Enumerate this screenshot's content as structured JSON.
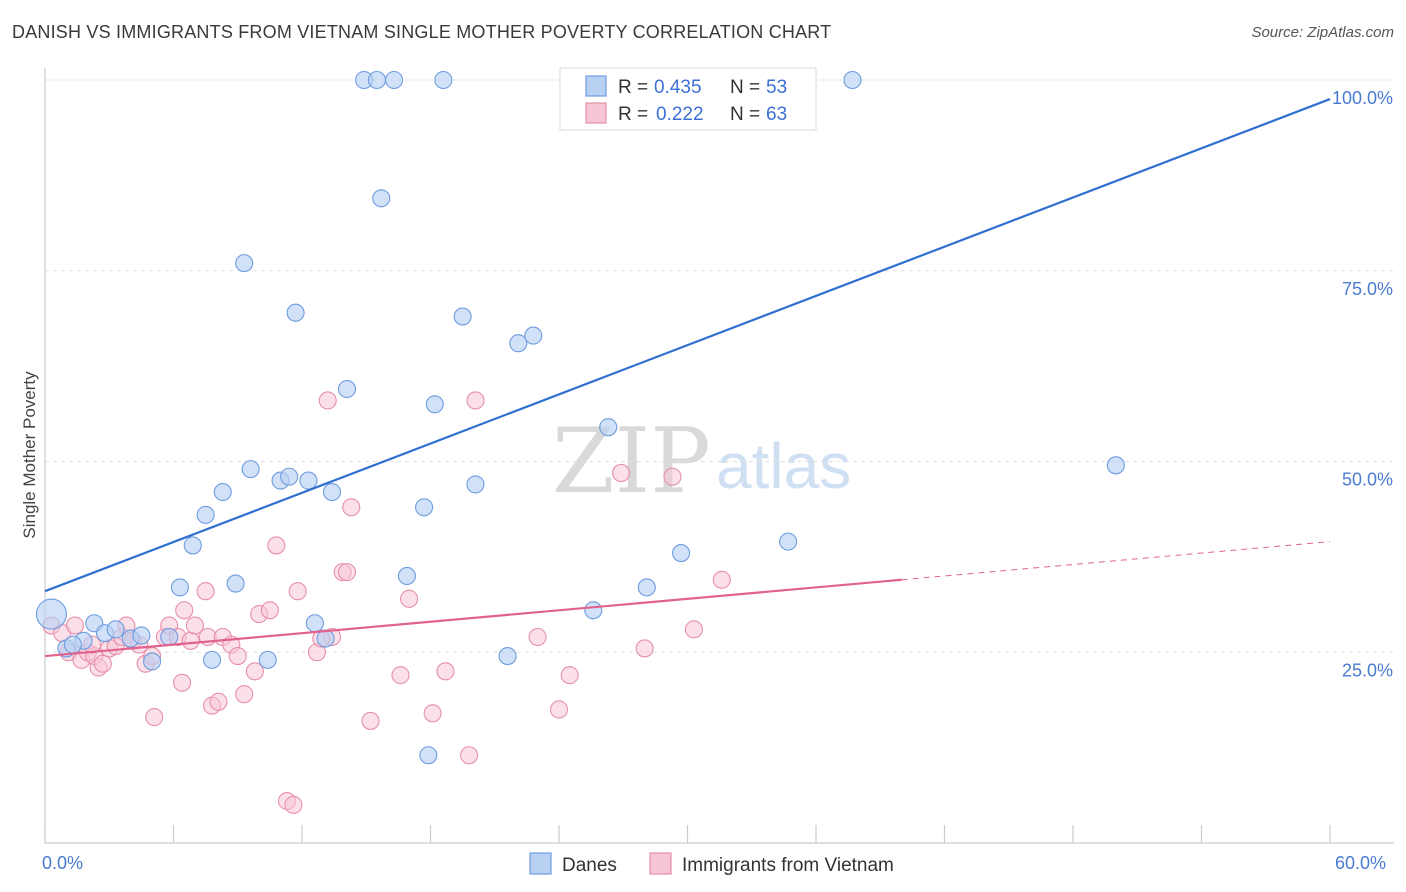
{
  "header": {
    "title": "DANISH VS IMMIGRANTS FROM VIETNAM SINGLE MOTHER POVERTY CORRELATION CHART",
    "source": "Source: ZipAtlas.com"
  },
  "watermark": {
    "zip": "ZIP",
    "atlas": "atlas"
  },
  "legend": {
    "danes": {
      "r_label": "R =",
      "r_value": "0.435",
      "n_label": "N =",
      "n_value": "53"
    },
    "vietnam": {
      "r_label": "R =",
      "r_value": "0.222",
      "n_label": "N =",
      "n_value": "63"
    }
  },
  "bottom_legend": {
    "danes": "Danes",
    "vietnam": "Immigrants from Vietnam"
  },
  "colors": {
    "danes_fill": "#b8d1f3",
    "danes_stroke": "#6d9ce0",
    "danes_line": "#2f6fd0",
    "vietnam_fill": "#f7c6d5",
    "vietnam_stroke": "#e78fab",
    "vietnam_line": "#e0628d"
  },
  "chart_data": {
    "type": "scatter",
    "title": "DANISH VS IMMIGRANTS FROM VIETNAM SINGLE MOTHER POVERTY CORRELATION CHART",
    "ylabel": "Single Mother Poverty",
    "xlabel": "",
    "xlim": [
      0,
      60
    ],
    "ylim": [
      0,
      100
    ],
    "x_tick_labels": [
      "0.0%",
      "60.0%"
    ],
    "y_tick_labels": [
      "25.0%",
      "50.0%",
      "75.0%",
      "100.0%"
    ],
    "y_ticks": [
      25,
      50,
      75,
      100
    ],
    "grid": true,
    "legend_placement": "top-center",
    "series": [
      {
        "name": "Danes",
        "r": 0.435,
        "n": 53,
        "trend": {
          "x": [
            0,
            60
          ],
          "y": [
            33.0,
            97.5
          ]
        },
        "points": [
          [
            0.3,
            30.0
          ],
          [
            1.0,
            25.5
          ],
          [
            1.8,
            26.5
          ],
          [
            2.3,
            28.8
          ],
          [
            2.8,
            27.5
          ],
          [
            3.3,
            28.0
          ],
          [
            4.0,
            26.8
          ],
          [
            4.5,
            27.2
          ],
          [
            5.0,
            23.8
          ],
          [
            5.8,
            27.0
          ],
          [
            6.3,
            33.5
          ],
          [
            6.9,
            39.0
          ],
          [
            7.5,
            43.0
          ],
          [
            7.8,
            24.0
          ],
          [
            8.3,
            46.0
          ],
          [
            8.9,
            34.0
          ],
          [
            9.3,
            76.0
          ],
          [
            9.6,
            49.0
          ],
          [
            10.4,
            24.0
          ],
          [
            11.0,
            47.5
          ],
          [
            11.4,
            48.0
          ],
          [
            11.7,
            69.5
          ],
          [
            12.3,
            47.5
          ],
          [
            12.6,
            28.8
          ],
          [
            13.1,
            26.8
          ],
          [
            13.4,
            46.0
          ],
          [
            14.1,
            59.5
          ],
          [
            14.9,
            100.0
          ],
          [
            15.5,
            100.0
          ],
          [
            15.7,
            84.5
          ],
          [
            16.3,
            100.0
          ],
          [
            16.9,
            35.0
          ],
          [
            17.7,
            44.0
          ],
          [
            17.9,
            11.5
          ],
          [
            18.2,
            57.5
          ],
          [
            18.6,
            100.0
          ],
          [
            19.5,
            69.0
          ],
          [
            20.1,
            47.0
          ],
          [
            21.6,
            24.5
          ],
          [
            22.1,
            65.5
          ],
          [
            22.8,
            66.5
          ],
          [
            24.9,
            100.0
          ],
          [
            25.6,
            30.5
          ],
          [
            26.3,
            54.5
          ],
          [
            27.3,
            100.0
          ],
          [
            28.1,
            33.5
          ],
          [
            29.7,
            38.0
          ],
          [
            31.1,
            100.0
          ],
          [
            34.7,
            39.5
          ],
          [
            37.7,
            100.0
          ],
          [
            50.0,
            49.5
          ],
          [
            25.1,
            100.0
          ],
          [
            1.3,
            26.0
          ]
        ]
      },
      {
        "name": "Immigrants from Vietnam",
        "r": 0.222,
        "n": 63,
        "trend": {
          "x": [
            0,
            40
          ],
          "y": [
            24.5,
            34.5
          ]
        },
        "trend_dashed": {
          "x": [
            40,
            60
          ],
          "y": [
            34.5,
            39.5
          ]
        },
        "points": [
          [
            0.3,
            28.5
          ],
          [
            0.8,
            27.5
          ],
          [
            1.1,
            25.0
          ],
          [
            1.4,
            28.5
          ],
          [
            1.7,
            24.0
          ],
          [
            2.0,
            25.0
          ],
          [
            2.3,
            24.5
          ],
          [
            2.5,
            23.0
          ],
          [
            2.7,
            23.5
          ],
          [
            3.0,
            25.5
          ],
          [
            3.3,
            25.8
          ],
          [
            3.6,
            27.0
          ],
          [
            3.8,
            28.5
          ],
          [
            4.1,
            26.5
          ],
          [
            4.4,
            26.0
          ],
          [
            4.7,
            23.5
          ],
          [
            5.0,
            24.5
          ],
          [
            5.1,
            16.5
          ],
          [
            5.6,
            27.0
          ],
          [
            5.8,
            28.5
          ],
          [
            6.2,
            27.0
          ],
          [
            6.4,
            21.0
          ],
          [
            6.5,
            30.5
          ],
          [
            6.8,
            26.5
          ],
          [
            7.0,
            28.5
          ],
          [
            7.5,
            33.0
          ],
          [
            7.6,
            27.0
          ],
          [
            7.8,
            18.0
          ],
          [
            8.1,
            18.5
          ],
          [
            8.3,
            27.0
          ],
          [
            8.7,
            26.0
          ],
          [
            9.0,
            24.5
          ],
          [
            9.3,
            19.5
          ],
          [
            9.8,
            22.5
          ],
          [
            10.0,
            30.0
          ],
          [
            10.5,
            30.5
          ],
          [
            10.8,
            39.0
          ],
          [
            11.3,
            5.5
          ],
          [
            11.6,
            5.0
          ],
          [
            11.8,
            33.0
          ],
          [
            12.7,
            25.0
          ],
          [
            13.2,
            58.0
          ],
          [
            13.4,
            27.0
          ],
          [
            13.9,
            35.5
          ],
          [
            14.1,
            35.5
          ],
          [
            14.3,
            44.0
          ],
          [
            15.2,
            16.0
          ],
          [
            16.6,
            22.0
          ],
          [
            17.0,
            32.0
          ],
          [
            18.1,
            17.0
          ],
          [
            18.7,
            22.5
          ],
          [
            19.8,
            11.5
          ],
          [
            20.1,
            58.0
          ],
          [
            23.0,
            27.0
          ],
          [
            24.0,
            17.5
          ],
          [
            24.5,
            22.0
          ],
          [
            26.9,
            48.5
          ],
          [
            28.0,
            25.5
          ],
          [
            29.3,
            48.0
          ],
          [
            30.3,
            28.0
          ],
          [
            31.6,
            34.5
          ],
          [
            12.9,
            26.8
          ],
          [
            2.2,
            26.0
          ]
        ]
      }
    ]
  }
}
